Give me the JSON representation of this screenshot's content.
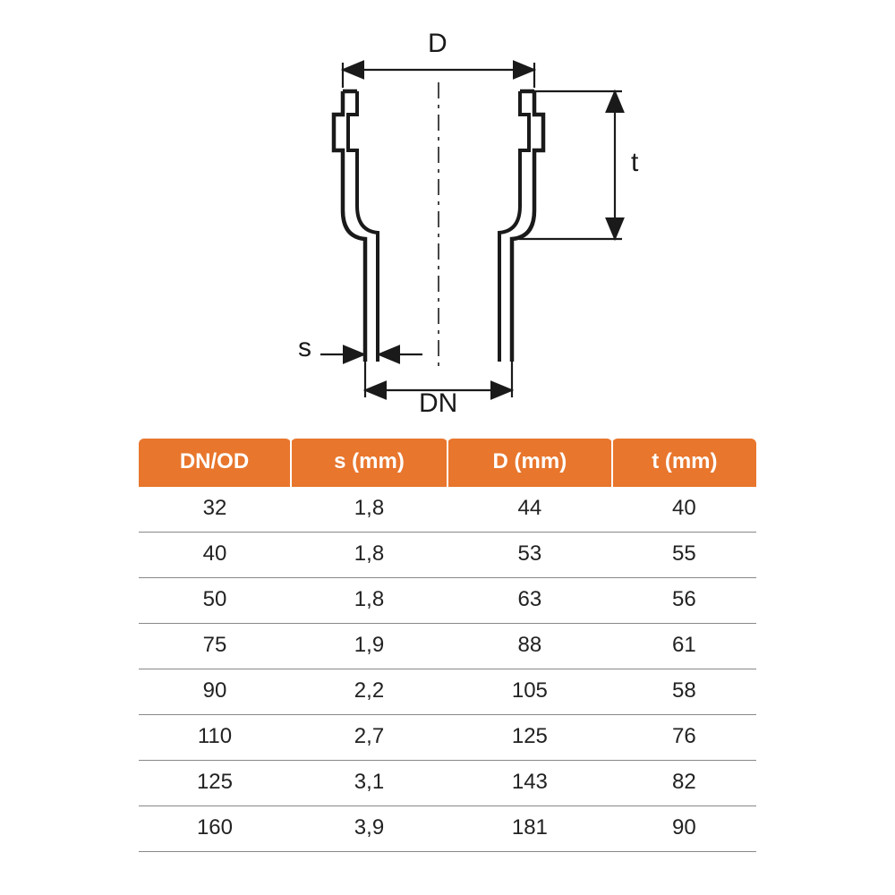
{
  "diagram": {
    "labels": {
      "D": "D",
      "t": "t",
      "s": "s",
      "DN": "DN"
    },
    "line_color": "#1a1a1a",
    "fill_color": "#ffffff"
  },
  "table": {
    "header_bg": "#e8762d",
    "header_fg": "#ffffff",
    "row_border": "#888888",
    "columns": [
      "DN/OD",
      "s (mm)",
      "D (mm)",
      "t (mm)"
    ],
    "rows": [
      [
        "32",
        "1,8",
        "44",
        "40"
      ],
      [
        "40",
        "1,8",
        "53",
        "55"
      ],
      [
        "50",
        "1,8",
        "63",
        "56"
      ],
      [
        "75",
        "1,9",
        "88",
        "61"
      ],
      [
        "90",
        "2,2",
        "105",
        "58"
      ],
      [
        "110",
        "2,7",
        "125",
        "76"
      ],
      [
        "125",
        "3,1",
        "143",
        "82"
      ],
      [
        "160",
        "3,9",
        "181",
        "90"
      ]
    ]
  }
}
